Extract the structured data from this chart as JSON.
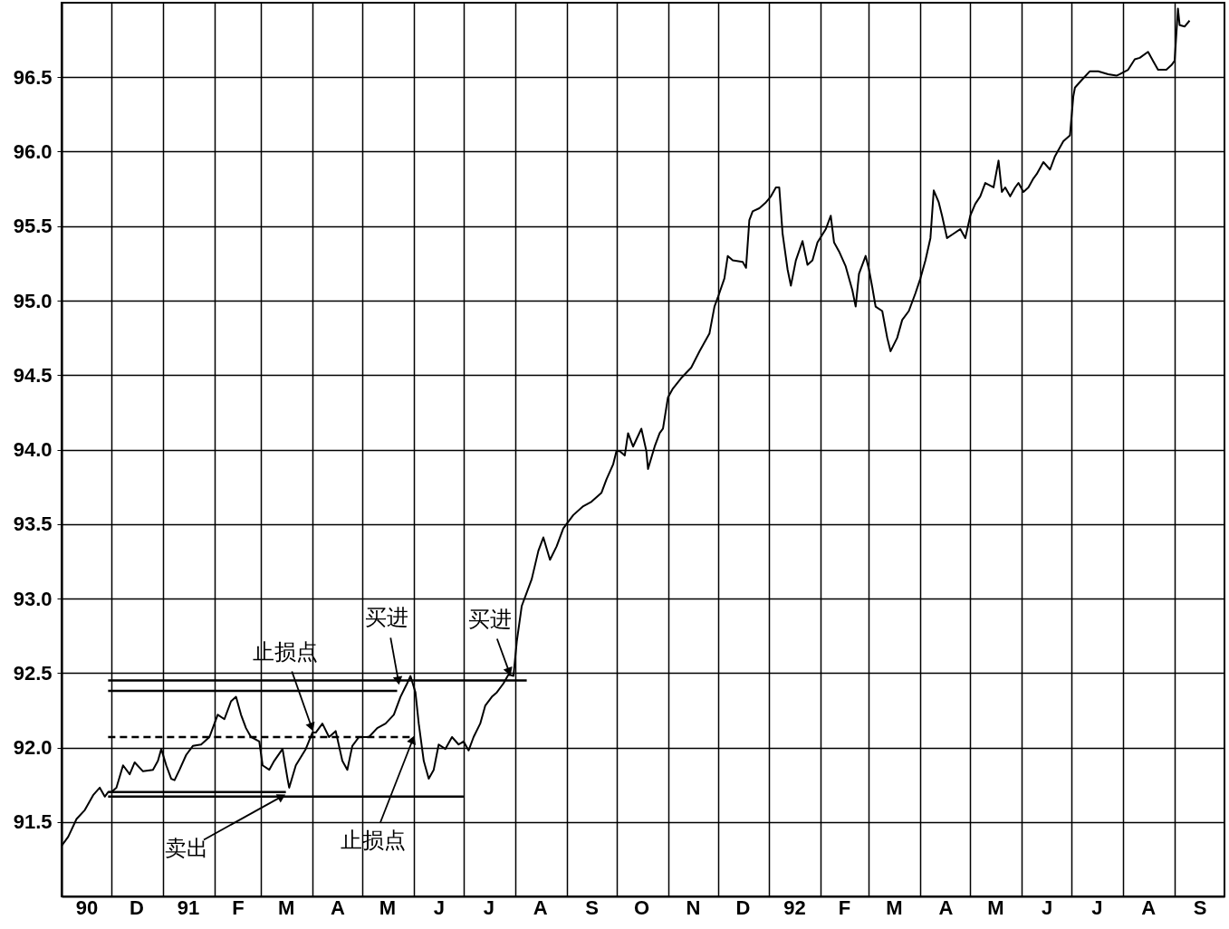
{
  "chart_data": {
    "type": "line",
    "xlim": [
      "1990-11-01",
      "1992-10-01"
    ],
    "ylim": [
      91.0,
      97.0
    ],
    "xticks": [
      {
        "value": "1990-11-01",
        "label": null
      },
      {
        "value": "1990-11-16",
        "label": "90"
      },
      {
        "value": "1990-12-01",
        "label": null
      },
      {
        "value": "1990-12-16",
        "label": "D"
      },
      {
        "value": "1991-01-01",
        "label": null
      },
      {
        "value": "1991-01-16",
        "label": "91"
      },
      {
        "value": "1991-02-01",
        "label": null
      },
      {
        "value": "1991-02-15",
        "label": "F"
      },
      {
        "value": "1991-03-01",
        "label": null
      },
      {
        "value": "1991-03-16",
        "label": "M"
      },
      {
        "value": "1991-04-01",
        "label": null
      },
      {
        "value": "1991-04-16",
        "label": "A"
      },
      {
        "value": "1991-05-01",
        "label": null
      },
      {
        "value": "1991-05-16",
        "label": "M"
      },
      {
        "value": "1991-06-01",
        "label": null
      },
      {
        "value": "1991-06-16",
        "label": "J"
      },
      {
        "value": "1991-07-01",
        "label": null
      },
      {
        "value": "1991-07-16",
        "label": "J"
      },
      {
        "value": "1991-08-01",
        "label": null
      },
      {
        "value": "1991-08-16",
        "label": "A"
      },
      {
        "value": "1991-09-01",
        "label": null
      },
      {
        "value": "1991-09-16",
        "label": "S"
      },
      {
        "value": "1991-10-01",
        "label": null
      },
      {
        "value": "1991-10-16",
        "label": "O"
      },
      {
        "value": "1991-11-01",
        "label": null
      },
      {
        "value": "1991-11-16",
        "label": "N"
      },
      {
        "value": "1991-12-01",
        "label": null
      },
      {
        "value": "1991-12-16",
        "label": "D"
      },
      {
        "value": "1992-01-01",
        "label": null
      },
      {
        "value": "1992-01-16",
        "label": "92"
      },
      {
        "value": "1992-02-01",
        "label": null
      },
      {
        "value": "1992-02-15",
        "label": "F"
      },
      {
        "value": "1992-03-01",
        "label": null
      },
      {
        "value": "1992-03-16",
        "label": "M"
      },
      {
        "value": "1992-04-01",
        "label": null
      },
      {
        "value": "1992-04-16",
        "label": "A"
      },
      {
        "value": "1992-05-01",
        "label": null
      },
      {
        "value": "1992-05-16",
        "label": "M"
      },
      {
        "value": "1992-06-01",
        "label": null
      },
      {
        "value": "1992-06-16",
        "label": "J"
      },
      {
        "value": "1992-07-01",
        "label": null
      },
      {
        "value": "1992-07-16",
        "label": "J"
      },
      {
        "value": "1992-08-01",
        "label": null
      },
      {
        "value": "1992-08-16",
        "label": "A"
      },
      {
        "value": "1992-09-01",
        "label": null
      },
      {
        "value": "1992-09-16",
        "label": "S"
      }
    ],
    "yticks": [
      {
        "value": 91.5,
        "label": "91.5"
      },
      {
        "value": 92.0,
        "label": "92.0"
      },
      {
        "value": 92.5,
        "label": "92.5"
      },
      {
        "value": 93.0,
        "label": "93.0"
      },
      {
        "value": 93.5,
        "label": "93.5"
      },
      {
        "value": 94.0,
        "label": "94.0"
      },
      {
        "value": 94.5,
        "label": "94.5"
      },
      {
        "value": 95.0,
        "label": "95.0"
      },
      {
        "value": 95.5,
        "label": "95.5"
      },
      {
        "value": 96.0,
        "label": "96.0"
      },
      {
        "value": 96.5,
        "label": "96.5"
      }
    ],
    "grid": true,
    "series": [
      {
        "color": "#000000",
        "x": [
          "1990-11-01",
          "1990-11-05",
          "1990-11-10",
          "1990-11-15",
          "1990-11-20",
          "1990-11-24",
          "1990-11-27",
          "1990-11-29",
          "1990-12-01",
          "1990-12-04",
          "1990-12-08",
          "1990-12-12",
          "1990-12-15",
          "1990-12-20",
          "1990-12-26",
          "1990-12-29",
          "1990-12-31",
          "1991-01-03",
          "1991-01-06",
          "1991-01-08",
          "1991-01-11",
          "1991-01-15",
          "1991-01-19",
          "1991-01-24",
          "1991-01-29",
          "1991-02-01",
          "1991-02-03",
          "1991-02-07",
          "1991-02-11",
          "1991-02-14",
          "1991-02-17",
          "1991-02-20",
          "1991-02-23",
          "1991-02-28",
          "1991-03-02",
          "1991-03-06",
          "1991-03-09",
          "1991-03-14",
          "1991-03-17",
          "1991-03-18",
          "1991-03-22",
          "1991-03-28",
          "1991-04-01",
          "1991-04-03",
          "1991-04-07",
          "1991-04-11",
          "1991-04-15",
          "1991-04-19",
          "1991-04-22",
          "1991-04-25",
          "1991-04-29",
          "1991-05-05",
          "1991-05-10",
          "1991-05-15",
          "1991-05-20",
          "1991-05-24",
          "1991-05-28",
          "1991-05-30",
          "1991-06-02",
          "1991-06-04",
          "1991-06-07",
          "1991-06-10",
          "1991-06-13",
          "1991-06-16",
          "1991-06-20",
          "1991-06-24",
          "1991-06-28",
          "1991-07-01",
          "1991-07-04",
          "1991-07-07",
          "1991-07-11",
          "1991-07-14",
          "1991-07-18",
          "1991-07-21",
          "1991-07-25",
          "1991-07-28",
          "1991-07-31",
          "1991-08-02",
          "1991-08-05",
          "1991-08-11",
          "1991-08-15",
          "1991-08-18",
          "1991-08-22",
          "1991-08-26",
          "1991-08-30",
          "1991-09-05",
          "1991-09-11",
          "1991-09-16",
          "1991-09-22",
          "1991-09-25",
          "1991-09-29",
          "1991-10-01",
          "1991-10-03",
          "1991-10-06",
          "1991-10-08",
          "1991-10-11",
          "1991-10-16",
          "1991-10-19",
          "1991-10-20",
          "1991-10-24",
          "1991-10-27",
          "1991-10-29",
          "1991-11-01",
          "1991-11-04",
          "1991-11-09",
          "1991-11-15",
          "1991-11-20",
          "1991-11-26",
          "1991-11-29",
          "1991-12-01",
          "1991-12-05",
          "1991-12-07",
          "1991-12-10",
          "1991-12-16",
          "1991-12-18",
          "1991-12-20",
          "1991-12-22",
          "1991-12-26",
          "1991-12-30",
          "1992-01-02",
          "1992-01-05",
          "1992-01-07",
          "1992-01-09",
          "1992-01-12",
          "1992-01-14",
          "1992-01-17",
          "1992-01-21",
          "1992-01-24",
          "1992-01-27",
          "1992-01-30",
          "1992-02-04",
          "1992-02-07",
          "1992-02-09",
          "1992-02-12",
          "1992-02-16",
          "1992-02-20",
          "1992-02-22",
          "1992-02-24",
          "1992-02-28",
          "1992-03-01",
          "1992-03-03",
          "1992-03-05",
          "1992-03-09",
          "1992-03-12",
          "1992-03-14",
          "1992-03-18",
          "1992-03-21",
          "1992-03-25",
          "1992-03-29",
          "1992-04-01",
          "1992-04-04",
          "1992-04-07",
          "1992-04-09",
          "1992-04-12",
          "1992-04-14",
          "1992-04-17",
          "1992-04-21",
          "1992-04-25",
          "1992-04-28",
          "1992-05-01",
          "1992-05-04",
          "1992-05-07",
          "1992-05-10",
          "1992-05-15",
          "1992-05-18",
          "1992-05-20",
          "1992-05-22",
          "1992-05-25",
          "1992-05-28",
          "1992-05-30",
          "1992-06-02",
          "1992-06-05",
          "1992-06-08",
          "1992-06-10",
          "1992-06-14",
          "1992-06-18",
          "1992-06-21",
          "1992-06-26",
          "1992-06-30",
          "1992-07-02",
          "1992-07-03",
          "1992-07-07",
          "1992-07-12",
          "1992-07-17",
          "1992-07-23",
          "1992-07-28",
          "1992-07-30",
          "1992-08-04",
          "1992-08-08",
          "1992-08-11",
          "1992-08-16",
          "1992-08-19",
          "1992-08-22",
          "1992-08-27",
          "1992-08-30",
          "1992-09-01",
          "1992-09-03",
          "1992-09-04",
          "1992-09-07",
          "1992-09-10"
        ],
        "values": [
          91.34,
          91.4,
          91.52,
          91.58,
          91.68,
          91.73,
          91.67,
          91.7,
          91.7,
          91.73,
          91.88,
          91.82,
          91.9,
          91.84,
          91.85,
          91.91,
          91.99,
          91.88,
          91.79,
          91.78,
          91.85,
          91.95,
          92.01,
          92.02,
          92.07,
          92.16,
          92.22,
          92.19,
          92.31,
          92.34,
          92.22,
          92.13,
          92.07,
          92.04,
          91.88,
          91.85,
          91.91,
          91.99,
          91.79,
          91.73,
          91.88,
          91.99,
          92.1,
          92.1,
          92.16,
          92.07,
          92.11,
          91.91,
          91.85,
          92.01,
          92.07,
          92.07,
          92.13,
          92.16,
          92.22,
          92.34,
          92.43,
          92.48,
          92.37,
          92.16,
          91.91,
          91.79,
          91.85,
          92.02,
          91.99,
          92.07,
          92.02,
          92.04,
          91.98,
          92.07,
          92.16,
          92.28,
          92.34,
          92.37,
          92.43,
          92.49,
          92.48,
          92.71,
          92.95,
          93.13,
          93.32,
          93.41,
          93.26,
          93.35,
          93.47,
          93.56,
          93.62,
          93.65,
          93.71,
          93.8,
          93.9,
          93.99,
          93.99,
          93.96,
          94.11,
          94.02,
          94.14,
          93.99,
          93.87,
          94.02,
          94.11,
          94.14,
          94.35,
          94.41,
          94.48,
          94.55,
          94.66,
          94.78,
          94.96,
          95.02,
          95.15,
          95.3,
          95.27,
          95.26,
          95.22,
          95.54,
          95.6,
          95.62,
          95.66,
          95.7,
          95.76,
          95.76,
          95.45,
          95.21,
          95.1,
          95.27,
          95.4,
          95.24,
          95.27,
          95.39,
          95.48,
          95.57,
          95.39,
          95.33,
          95.23,
          95.07,
          94.96,
          95.18,
          95.3,
          95.21,
          95.09,
          94.96,
          94.93,
          94.75,
          94.66,
          94.75,
          94.87,
          94.93,
          95.05,
          95.15,
          95.27,
          95.42,
          95.74,
          95.66,
          95.57,
          95.42,
          95.45,
          95.48,
          95.42,
          95.57,
          95.65,
          95.7,
          95.79,
          95.76,
          95.94,
          95.73,
          95.76,
          95.7,
          95.76,
          95.79,
          95.73,
          95.76,
          95.82,
          95.85,
          95.93,
          95.88,
          95.97,
          96.07,
          96.11,
          96.37,
          96.43,
          96.48,
          96.54,
          96.54,
          96.52,
          96.51,
          96.52,
          96.55,
          96.62,
          96.63,
          96.67,
          96.61,
          96.55,
          96.55,
          96.58,
          96.61,
          96.96,
          96.85,
          96.84,
          96.88
        ]
      },
      {
        "type": "line",
        "color": "#000000",
        "x": [
          "1990-11-29",
          "1991-08-08"
        ],
        "values": [
          92.45,
          92.45
        ]
      },
      {
        "type": "line",
        "color": "#000000",
        "x": [
          "1990-11-29",
          "1991-05-22"
        ],
        "values": [
          92.38,
          92.38
        ]
      },
      {
        "type": "line",
        "color": "#000000",
        "line_style": "dashed",
        "x": [
          "1990-11-29",
          "1991-06-01"
        ],
        "values": [
          92.07,
          92.07
        ]
      },
      {
        "type": "line",
        "color": "#000000",
        "x": [
          "1990-11-29",
          "1991-03-16"
        ],
        "values": [
          91.7,
          91.7
        ]
      },
      {
        "type": "line",
        "color": "#000000",
        "x": [
          "1990-11-29",
          "1991-07-01"
        ],
        "values": [
          91.67,
          91.67
        ]
      }
    ],
    "annotations": [
      {
        "text": "止损点",
        "x": "1991-04-01",
        "y": 92.12
      },
      {
        "text": "买进",
        "x": "1991-05-23",
        "y": 92.43
      },
      {
        "text": "买进",
        "x": "1991-07-29",
        "y": 92.49
      },
      {
        "text": "止损点",
        "x": "1991-06-01",
        "y": 92.07
      },
      {
        "text": "卖出",
        "x": "1991-03-15",
        "y": 91.68
      }
    ]
  }
}
